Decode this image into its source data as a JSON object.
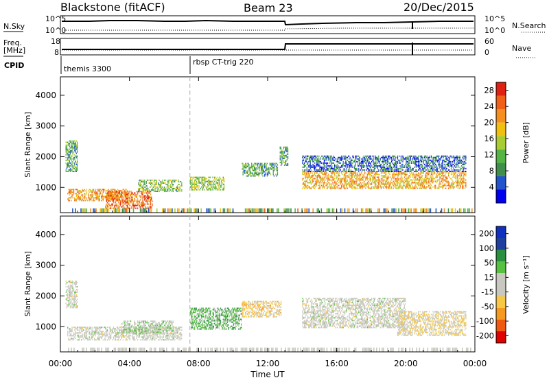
{
  "header": {
    "station": "Blackstone (fitACF)",
    "beam": "Beam 23",
    "date": "20/Dec/2015"
  },
  "top_panels": {
    "nsky_label": "N.Sky",
    "nsky_hi": "10^5",
    "nsky_lo": "10^0",
    "nsearch_label": "N.Search",
    "nsearch_hi": "10^5",
    "nsearch_lo": "10^0",
    "freq_label_1": "Freq.",
    "freq_label_2": "[MHz]",
    "freq_hi": "18",
    "freq_lo": "8",
    "nave_label": "Nave",
    "nave_hi": "60",
    "nave_lo": "0",
    "cpid_label": "CPID",
    "cpid_1": "themis 3300",
    "cpid_2": "rbsp CT-trig 220"
  },
  "colors": {
    "power": [
      "#0000ee",
      "#2255cc",
      "#3f8f4a",
      "#55b544",
      "#aacc33",
      "#f0c010",
      "#f59020",
      "#f06018",
      "#e02010"
    ],
    "velocity": [
      "#e00000",
      "#f05a10",
      "#f59a20",
      "#f7c845",
      "#c8c8c0",
      "#c8c8c0",
      "#58c040",
      "#2a9040",
      "#2040a0",
      "#1030c0"
    ]
  },
  "chart_data": [
    {
      "type": "heatmap",
      "panel": "power",
      "ylabel": "Slant Range [km]",
      "xlabel": "",
      "x_ticks": [
        "00:00",
        "04:00",
        "08:00",
        "12:00",
        "16:00",
        "20:00",
        "00:00"
      ],
      "y_ticks": [
        "1000",
        "2000",
        "3000",
        "4000"
      ],
      "xlim": [
        0,
        24
      ],
      "ylim": [
        180,
        4600
      ],
      "colorbar_label": "Power [dB]",
      "colorbar_ticks": [
        "4",
        "8",
        "12",
        "16",
        "20",
        "24",
        "28"
      ],
      "colorbar_range": [
        0,
        30
      ],
      "marker_hour": 7.5,
      "cpid_change_hour": 7.5,
      "regions": [
        {
          "t0": 0.4,
          "t1": 4.0,
          "r0": 550,
          "r1": 950,
          "value": 21
        },
        {
          "t0": 2.6,
          "t1": 5.3,
          "r0": 300,
          "r1": 850,
          "value": 24
        },
        {
          "t0": 4.5,
          "t1": 7.0,
          "r0": 850,
          "r1": 1250,
          "value": 12
        },
        {
          "t0": 7.5,
          "t1": 9.5,
          "r0": 900,
          "r1": 1350,
          "value": 14
        },
        {
          "t0": 10.5,
          "t1": 12.6,
          "r0": 1350,
          "r1": 1800,
          "value": 10
        },
        {
          "t0": 12.7,
          "t1": 13.2,
          "r0": 1700,
          "r1": 2300,
          "value": 10
        },
        {
          "t0": 14.0,
          "t1": 23.5,
          "r0": 950,
          "r1": 1500,
          "value": 20
        },
        {
          "t0": 14.0,
          "t1": 23.5,
          "r0": 1500,
          "r1": 2000,
          "value": 6
        },
        {
          "t0": 0.3,
          "t1": 1.0,
          "r0": 1500,
          "r1": 2500,
          "value": 10
        }
      ]
    },
    {
      "type": "heatmap",
      "panel": "velocity",
      "ylabel": "Slant Range [km]",
      "xlabel": "Time UT",
      "x_ticks": [
        "00:00",
        "04:00",
        "08:00",
        "12:00",
        "16:00",
        "20:00",
        "00:00"
      ],
      "y_ticks": [
        "1000",
        "2000",
        "3000",
        "4000"
      ],
      "xlim": [
        0,
        24
      ],
      "ylim": [
        180,
        4600
      ],
      "colorbar_label": "Velocity [m s⁻¹]",
      "colorbar_ticks": [
        "200",
        "100",
        "50",
        "15",
        "-15",
        "-50",
        "-100",
        "-200"
      ],
      "colorbar_range": [
        -250,
        250
      ],
      "marker_hour": 7.5,
      "regions": [
        {
          "t0": 0.4,
          "t1": 7.0,
          "r0": 550,
          "r1": 1000,
          "value": 0
        },
        {
          "t0": 3.5,
          "t1": 6.5,
          "r0": 750,
          "r1": 1200,
          "value": 30
        },
        {
          "t0": 7.5,
          "t1": 10.5,
          "r0": 900,
          "r1": 1600,
          "value": 80
        },
        {
          "t0": 10.5,
          "t1": 12.8,
          "r0": 1300,
          "r1": 1800,
          "value": -60
        },
        {
          "t0": 14.0,
          "t1": 20.0,
          "r0": 950,
          "r1": 1900,
          "value": 0
        },
        {
          "t0": 19.5,
          "t1": 23.5,
          "r0": 700,
          "r1": 1500,
          "value": -40
        },
        {
          "t0": 0.3,
          "t1": 1.0,
          "r0": 1600,
          "r1": 2500,
          "value": 0
        }
      ]
    }
  ]
}
